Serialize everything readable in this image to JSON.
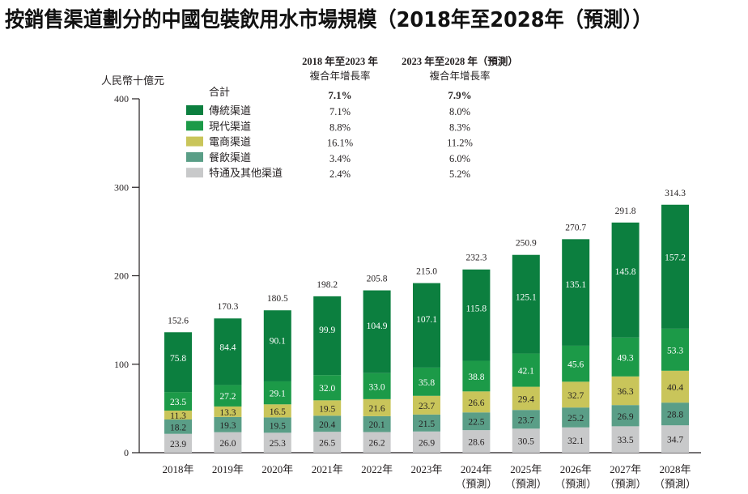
{
  "title": "按銷售渠道劃分的中國包裝飲用水市場規模（2018年至2028年（預測））",
  "chart_data": {
    "type": "bar",
    "stacked": true,
    "title": "按銷售渠道劃分的中國包裝飲用水市場規模（2018年至2028年（預測））",
    "ylabel": "人民幣十億元",
    "xlabel": "",
    "ylim": [
      0,
      400
    ],
    "yticks": [
      0,
      100,
      200,
      300,
      400
    ],
    "grid": false,
    "legend_position": "top-left",
    "categories": [
      {
        "line1": "2018年",
        "line2": ""
      },
      {
        "line1": "2019年",
        "line2": ""
      },
      {
        "line1": "2020年",
        "line2": ""
      },
      {
        "line1": "2021年",
        "line2": ""
      },
      {
        "line1": "2022年",
        "line2": ""
      },
      {
        "line1": "2023年",
        "line2": ""
      },
      {
        "line1": "2024年",
        "line2": "（預測）"
      },
      {
        "line1": "2025年",
        "line2": "（預測）"
      },
      {
        "line1": "2026年",
        "line2": "（預測）"
      },
      {
        "line1": "2027年",
        "line2": "（預測）"
      },
      {
        "line1": "2028年",
        "line2": "（預測）"
      }
    ],
    "series": [
      {
        "name": "特通及其他渠道",
        "color": "#c8c9ca",
        "label_color": "#231f20",
        "values": [
          23.9,
          26.0,
          25.3,
          26.5,
          26.2,
          26.9,
          28.6,
          30.5,
          32.1,
          33.5,
          34.7
        ]
      },
      {
        "name": "餐飲渠道",
        "color": "#5a9e87",
        "label_color": "#231f20",
        "values": [
          18.2,
          19.3,
          19.5,
          20.4,
          20.1,
          21.5,
          22.5,
          23.7,
          25.2,
          26.9,
          28.8
        ]
      },
      {
        "name": "電商渠道",
        "color": "#c9c55a",
        "label_color": "#231f20",
        "values": [
          11.3,
          13.3,
          16.5,
          19.5,
          21.6,
          23.7,
          26.6,
          29.4,
          32.7,
          36.3,
          40.4
        ]
      },
      {
        "name": "現代渠道",
        "color": "#1c9a48",
        "label_color": "#ffffff",
        "values": [
          23.5,
          27.2,
          29.1,
          32.0,
          33.0,
          35.8,
          38.8,
          42.1,
          45.6,
          49.3,
          53.3
        ]
      },
      {
        "name": "傳統渠道",
        "color": "#0c7f3f",
        "label_color": "#ffffff",
        "values": [
          75.8,
          84.4,
          90.1,
          99.9,
          104.9,
          107.1,
          115.8,
          125.1,
          135.1,
          145.8,
          157.2
        ]
      }
    ],
    "totals": [
      152.6,
      170.3,
      180.5,
      198.2,
      205.8,
      215.0,
      232.3,
      250.9,
      270.7,
      291.8,
      314.3
    ],
    "legend": {
      "col1_header": [
        "2018 年至2023 年",
        "複合年增長率"
      ],
      "col2_header": [
        "2023 年至2028 年（預測）",
        "複合年增長率"
      ],
      "total_row": {
        "label": "合計",
        "cagr_2018_2023": "7.1%",
        "cagr_2023_2028": "7.9%"
      },
      "rows": [
        {
          "label": "傳統渠道",
          "color": "#0c7f3f",
          "cagr_2018_2023": "7.1%",
          "cagr_2023_2028": "8.0%"
        },
        {
          "label": "現代渠道",
          "color": "#1c9a48",
          "cagr_2018_2023": "8.8%",
          "cagr_2023_2028": "8.3%"
        },
        {
          "label": "電商渠道",
          "color": "#c9c55a",
          "cagr_2018_2023": "16.1%",
          "cagr_2023_2028": "11.2%"
        },
        {
          "label": "餐飲渠道",
          "color": "#5a9e87",
          "cagr_2018_2023": "3.4%",
          "cagr_2023_2028": "6.0%"
        },
        {
          "label": "特通及其他渠道",
          "color": "#c8c9ca",
          "cagr_2018_2023": "2.4%",
          "cagr_2023_2028": "5.2%"
        }
      ]
    }
  }
}
